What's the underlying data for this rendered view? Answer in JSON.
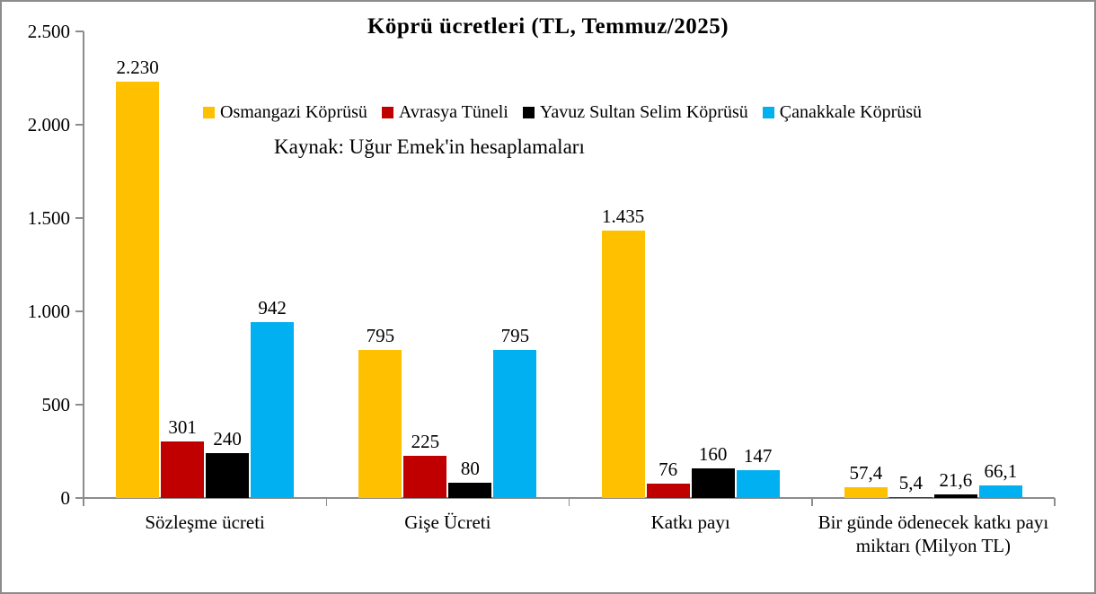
{
  "title": "Köprü ücretleri (TL, Temmuz/2025)",
  "source_note": "Kaynak: Uğur Emek'in hesaplamaları",
  "colors": {
    "osmangazi": "#FFC000",
    "avrasya": "#C00000",
    "yavuz_sultan_selim": "#000000",
    "canakkale": "#00B0F0",
    "axis": "#8c8c8c",
    "border": "#8c8c8c",
    "text": "#000000"
  },
  "chart_data": {
    "type": "bar",
    "title": "Köprü ücretleri (TL, Temmuz/2025)",
    "xlabel": "",
    "ylabel": "",
    "grid": false,
    "legend_position": "top-center",
    "categories": [
      "Sözleşme ücreti",
      "Gişe Ücreti",
      "Katkı payı",
      "Bir günde ödenecek katkı payı miktarı (Milyon TL)"
    ],
    "series": [
      {
        "name": "Osmangazi Köprüsü",
        "color": "#FFC000",
        "values": [
          2230,
          795,
          1435,
          57.4
        ],
        "labels": [
          "2.230",
          "795",
          "1.435",
          "57,4"
        ]
      },
      {
        "name": "Avrasya Tüneli",
        "color": "#C00000",
        "values": [
          301,
          225,
          76,
          5.4
        ],
        "labels": [
          "301",
          "225",
          "76",
          "5,4"
        ]
      },
      {
        "name": "Yavuz Sultan Selim Köprüsü",
        "color": "#000000",
        "values": [
          240,
          80,
          160,
          21.6
        ],
        "labels": [
          "240",
          "80",
          "160",
          "21,6"
        ]
      },
      {
        "name": "Çanakkale Köprüsü",
        "color": "#00B0F0",
        "values": [
          942,
          795,
          147,
          66.1
        ],
        "labels": [
          "942",
          "795",
          "147",
          "66,1"
        ]
      }
    ],
    "y_axis": {
      "min": 0,
      "max": 2500,
      "step": 500,
      "tick_labels": [
        "0",
        "500",
        "1.000",
        "1.500",
        "2.000",
        "2.500"
      ]
    }
  }
}
